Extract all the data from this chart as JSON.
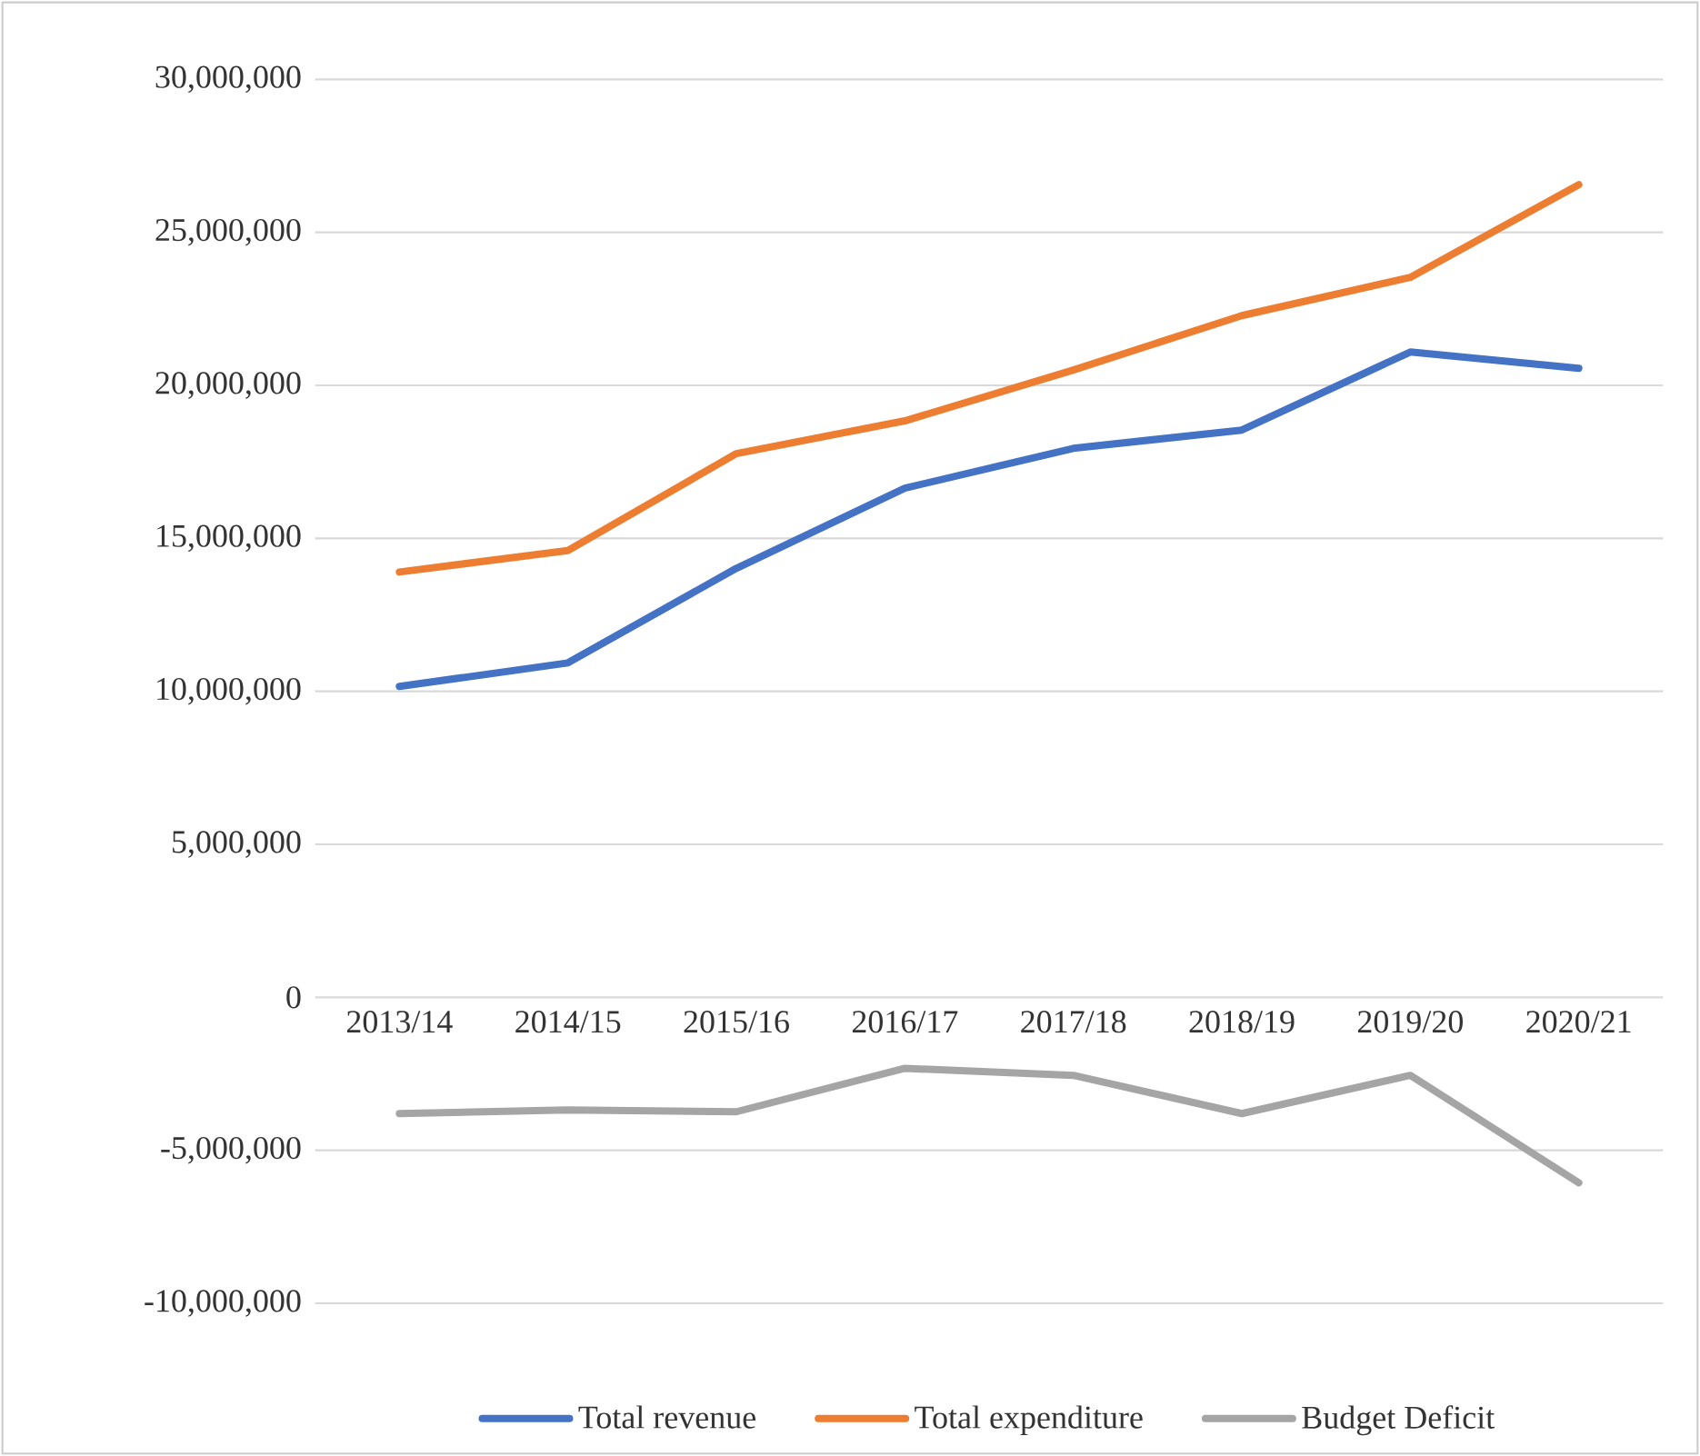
{
  "chart_data": {
    "type": "line",
    "categories": [
      "2013/14",
      "2014/15",
      "2015/16",
      "2016/17",
      "2017/18",
      "2018/19",
      "2019/20",
      "2020/21"
    ],
    "series": [
      {
        "name": "Total revenue",
        "color": "#4472c4",
        "values": [
          10160000,
          10930000,
          14020000,
          16640000,
          17940000,
          18540000,
          21090000,
          20560000
        ]
      },
      {
        "name": "Total expenditure",
        "color": "#ed7d31",
        "values": [
          13900000,
          14600000,
          17770000,
          18840000,
          20500000,
          22280000,
          23530000,
          26560000
        ]
      },
      {
        "name": "Budget Deficit",
        "color": "#a5a5a5",
        "values": [
          -3800000,
          -3680000,
          -3740000,
          -2320000,
          -2550000,
          -3800000,
          -2550000,
          -6060000
        ]
      }
    ],
    "ylim": [
      -10000000,
      30000000
    ],
    "yticks": [
      {
        "value": -10000000,
        "label": "-10,000,000"
      },
      {
        "value": -5000000,
        "label": "-5,000,000"
      },
      {
        "value": 0,
        "label": "0"
      },
      {
        "value": 5000000,
        "label": "5,000,000"
      },
      {
        "value": 10000000,
        "label": "10,000,000"
      },
      {
        "value": 15000000,
        "label": "15,000,000"
      },
      {
        "value": 20000000,
        "label": "20,000,000"
      },
      {
        "value": 25000000,
        "label": "25,000,000"
      },
      {
        "value": 30000000,
        "label": "30,000,000"
      }
    ],
    "grid": "y",
    "legend": "bottom",
    "marker": "none",
    "line_style": "solid"
  }
}
